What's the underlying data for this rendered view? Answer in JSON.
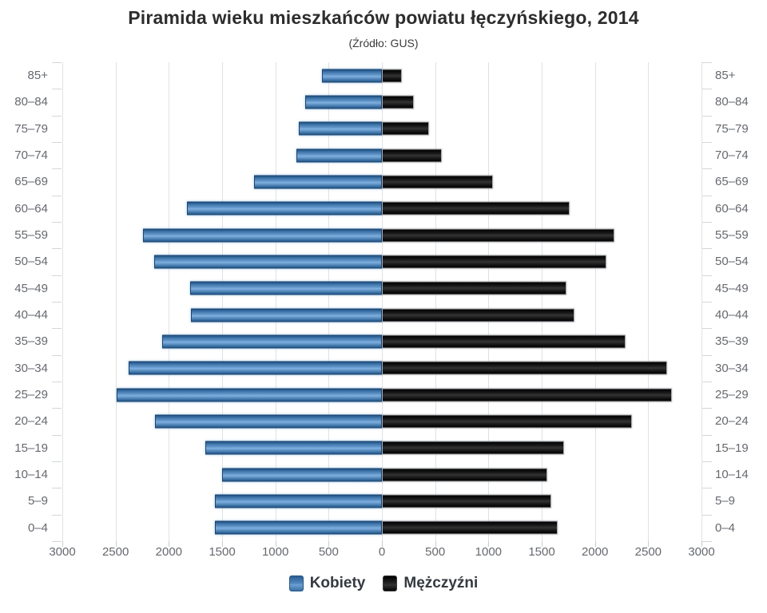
{
  "chart_data": {
    "type": "bar",
    "variant": "population_pyramid",
    "title": "Piramida wieku mieszkańców powiatu łęczyńskiego, 2014",
    "subtitle": "(Źródło: GUS)",
    "categories": [
      "85+",
      "80–84",
      "75–79",
      "70–74",
      "65–69",
      "60–64",
      "55–59",
      "50–54",
      "45–49",
      "40–44",
      "35–39",
      "30–34",
      "25–29",
      "20–24",
      "15–19",
      "10–14",
      "5–9",
      "0–4"
    ],
    "categories_order": "top_to_bottom",
    "series": [
      {
        "name": "Kobiety",
        "side": "left",
        "color": "#4d84bc",
        "values": [
          560,
          720,
          780,
          800,
          1200,
          1830,
          2240,
          2140,
          1800,
          1790,
          2060,
          2380,
          2490,
          2130,
          1660,
          1500,
          1570,
          1570
        ]
      },
      {
        "name": "Mężczyźni",
        "side": "right",
        "color": "#141414",
        "values": [
          190,
          300,
          440,
          560,
          1040,
          1760,
          2180,
          2110,
          1730,
          1810,
          2290,
          2680,
          2720,
          2350,
          1710,
          1550,
          1590,
          1650
        ]
      }
    ],
    "x_axis": {
      "max_each_side": 3000,
      "tick_step": 500,
      "tick_labels": [
        "3000",
        "2500",
        "2000",
        "1500",
        "1000",
        "500",
        "0",
        "500",
        "1000",
        "1500",
        "2000",
        "2500",
        "3000"
      ]
    },
    "grid": true,
    "legend_position": "bottom"
  }
}
